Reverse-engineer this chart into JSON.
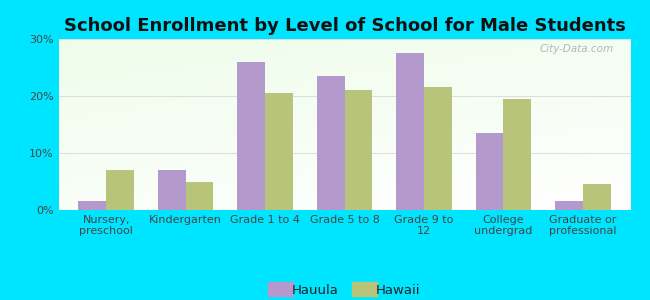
{
  "title": "School Enrollment by Level of School for Male Students",
  "categories": [
    "Nursery,\npreschool",
    "Kindergarten",
    "Grade 1 to 4",
    "Grade 5 to 8",
    "Grade 9 to\n12",
    "College\nundergrad",
    "Graduate or\nprofessional"
  ],
  "hauula": [
    1.5,
    7.0,
    26.0,
    23.5,
    27.5,
    13.5,
    1.5
  ],
  "hawaii": [
    7.0,
    5.0,
    20.5,
    21.0,
    21.5,
    19.5,
    4.5
  ],
  "hauula_color": "#b399cc",
  "hawaii_color": "#b8c47a",
  "background_color": "#00e5ff",
  "ylim": [
    0,
    30
  ],
  "yticks": [
    0,
    10,
    20,
    30
  ],
  "ytick_labels": [
    "0%",
    "10%",
    "20%",
    "30%"
  ],
  "bar_width": 0.35,
  "title_fontsize": 13,
  "tick_fontsize": 8,
  "legend_fontsize": 9.5,
  "watermark": "City-Data.com"
}
